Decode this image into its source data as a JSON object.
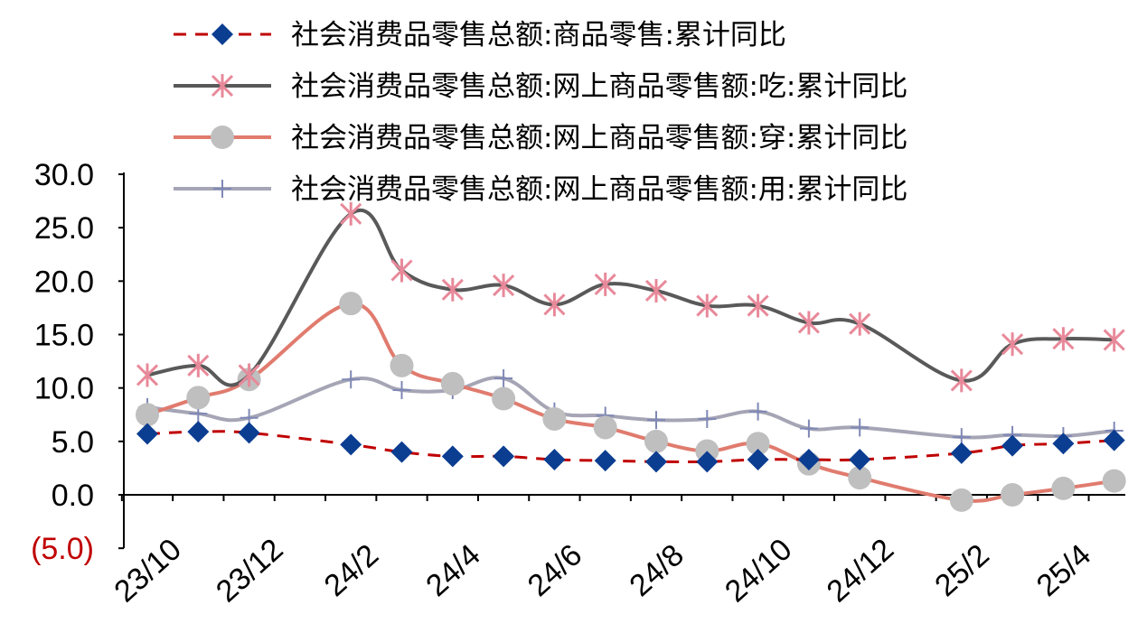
{
  "chart_data": {
    "type": "line",
    "categories": [
      "23/10",
      "23/11",
      "23/12",
      "24/1",
      "24/2",
      "24/3",
      "24/4",
      "24/5",
      "24/6",
      "24/7",
      "24/8",
      "24/9",
      "24/10",
      "24/11",
      "24/12",
      "25/1",
      "25/2",
      "25/3",
      "25/4",
      "25/5"
    ],
    "x_tick_labels": [
      "23/10",
      "23/12",
      "24/2",
      "24/4",
      "24/6",
      "24/8",
      "24/10",
      "24/12",
      "25/2",
      "25/4"
    ],
    "y_tick_labels": [
      "30.0",
      "25.0",
      "20.0",
      "15.0",
      "10.0",
      "5.0",
      "0.0",
      "(5.0)"
    ],
    "ylim": [
      -5,
      30
    ],
    "grid": false,
    "legend_position": "top",
    "series": [
      {
        "name": "社会消费品零售总额:商品零售:累计同比",
        "color": "#c00000",
        "marker_color": "#0b3d91",
        "style": "dashed",
        "marker": "diamond",
        "values": [
          5.7,
          5.9,
          5.8,
          null,
          4.7,
          4.0,
          3.6,
          3.6,
          3.3,
          3.2,
          3.1,
          3.1,
          3.3,
          3.3,
          3.3,
          null,
          3.9,
          4.6,
          4.8,
          5.1
        ]
      },
      {
        "name": "社会消费品零售总额:网上商品零售额:吃:累计同比",
        "color": "#595959",
        "marker_color": "#e8899a",
        "style": "solid",
        "marker": "asterisk",
        "values": [
          11.2,
          12.1,
          11.2,
          null,
          26.3,
          21.0,
          19.2,
          19.6,
          17.8,
          19.7,
          19.1,
          17.7,
          17.7,
          16.1,
          16.0,
          null,
          10.7,
          14.1,
          14.6,
          14.5
        ]
      },
      {
        "name": "社会消费品零售总额:网上商品零售额:穿:累计同比",
        "color": "#e07b6e",
        "marker_color": "#bfbfbf",
        "style": "solid",
        "marker": "circle",
        "values": [
          7.5,
          9.1,
          10.8,
          null,
          17.9,
          12.1,
          10.4,
          9.0,
          7.1,
          6.3,
          5.0,
          4.1,
          4.8,
          2.9,
          1.6,
          null,
          -0.5,
          0.0,
          0.6,
          1.3
        ]
      },
      {
        "name": "社会消费品零售总额:网上商品零售额:用:累计同比",
        "color": "#a5a5b5",
        "marker_color": "#7f88b6",
        "style": "solid",
        "marker": "plus",
        "values": [
          8.2,
          7.6,
          7.2,
          null,
          10.8,
          9.8,
          9.8,
          10.9,
          7.8,
          7.4,
          7.0,
          7.1,
          7.8,
          6.2,
          6.3,
          null,
          5.4,
          5.6,
          5.5,
          6.0
        ]
      }
    ]
  }
}
